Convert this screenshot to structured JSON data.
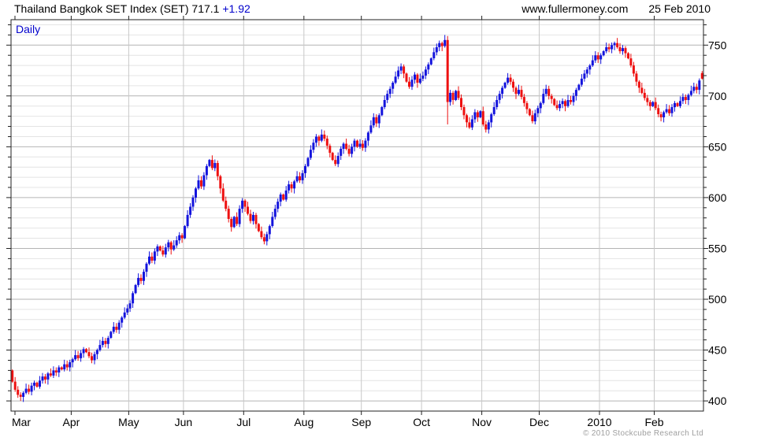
{
  "header": {
    "title": "Thailand Bangkok SET Index (SET) 717.1",
    "change": "+1.92",
    "website": "www.fullermoney.com",
    "date": "25 Feb 2010"
  },
  "chart": {
    "interval_label": "Daily",
    "copyright": "© 2010 Stockcube Research Ltd"
  },
  "colors": {
    "up": "#1414dd",
    "down": "#ee1111",
    "grid_minor": "#e4e4e4",
    "grid_major": "#b4b4b4",
    "grid_vertical": "#c8c8c8",
    "frame": "#222222",
    "accent_blue": "#0000cc",
    "text": "#000000",
    "copyright_gray": "#9f9f9f"
  },
  "chart_data": {
    "type": "candlestick",
    "title": "Thailand Bangkok SET Index (SET)",
    "interval": "Daily",
    "last": 717.1,
    "change": 1.92,
    "ylim": [
      390,
      775
    ],
    "yticks": [
      400,
      450,
      500,
      550,
      600,
      650,
      700,
      750
    ],
    "y_minor_step": 10,
    "grid": true,
    "legend_position": "none",
    "open_first": 430,
    "months": [
      {
        "label": "Mar",
        "closes": [
          419,
          411,
          406,
          404,
          408,
          412,
          409,
          415,
          418,
          414,
          420,
          424,
          421,
          427,
          425,
          430,
          428,
          433,
          431,
          436,
          433,
          438
        ]
      },
      {
        "label": "Apr",
        "closes": [
          441,
          445,
          442,
          447,
          451,
          448,
          444,
          440,
          446,
          450,
          455,
          459,
          456,
          462,
          468,
          473,
          470,
          477,
          482,
          487,
          491
        ]
      },
      {
        "label": "May",
        "closes": [
          496,
          506,
          514,
          521,
          518,
          527,
          535,
          542,
          538,
          547,
          552,
          548,
          544,
          551,
          556,
          549,
          553,
          558,
          563,
          560
        ]
      },
      {
        "label": "Jun",
        "closes": [
          572,
          583,
          591,
          600,
          609,
          617,
          611,
          622,
          631,
          637,
          629,
          634,
          621,
          609,
          597,
          589,
          579,
          571,
          581,
          574,
          589,
          597
        ]
      },
      {
        "label": "Jul",
        "closes": [
          591,
          584,
          577,
          583,
          574,
          567,
          561,
          557,
          564,
          572,
          581,
          589,
          596,
          603,
          598,
          607,
          613,
          609,
          616,
          621,
          617,
          624
        ]
      },
      {
        "label": "Aug",
        "closes": [
          631,
          639,
          647,
          654,
          660,
          656,
          662,
          658,
          651,
          644,
          637,
          633,
          641,
          648,
          653,
          648,
          643,
          650,
          656,
          650,
          653
        ]
      },
      {
        "label": "Sep",
        "closes": [
          649,
          656,
          664,
          671,
          679,
          673,
          681,
          689,
          696,
          702,
          707,
          713,
          719,
          725,
          729,
          722,
          714,
          709,
          716,
          721,
          713,
          717
        ]
      },
      {
        "label": "Oct",
        "closes": [
          720,
          726,
          731,
          737,
          743,
          748,
          752,
          749,
          755,
          694,
          703,
          696,
          705,
          698,
          689,
          681,
          674,
          669,
          677,
          684,
          679,
          685
        ]
      },
      {
        "label": "Nov",
        "closes": [
          672,
          667,
          674,
          682,
          689,
          696,
          702,
          708,
          713,
          718,
          714,
          708,
          702,
          706,
          699,
          693,
          687,
          681,
          675,
          683,
          688
        ]
      },
      {
        "label": "Dec",
        "closes": [
          693,
          702,
          707,
          700,
          697,
          691,
          688,
          692,
          695,
          690,
          696,
          694,
          700,
          706,
          711,
          717,
          722,
          726,
          730,
          735,
          740,
          736
        ]
      },
      {
        "label": "2010",
        "closes": [
          740,
          744,
          748,
          746,
          750,
          752,
          748,
          744,
          747,
          742,
          737,
          730,
          722,
          714,
          708,
          703,
          698,
          694,
          690,
          694
        ]
      },
      {
        "label": "Feb",
        "closes": [
          688,
          682,
          679,
          684,
          687,
          683,
          689,
          693,
          690,
          695,
          699,
          696,
          701,
          705,
          709,
          706,
          715.2,
          717.1
        ]
      }
    ],
    "overrides": {
      "158": {
        "high": 760
      },
      "159": {
        "low": 672
      },
      "252": {
        "open": 722.5,
        "high": 724.5
      }
    }
  }
}
